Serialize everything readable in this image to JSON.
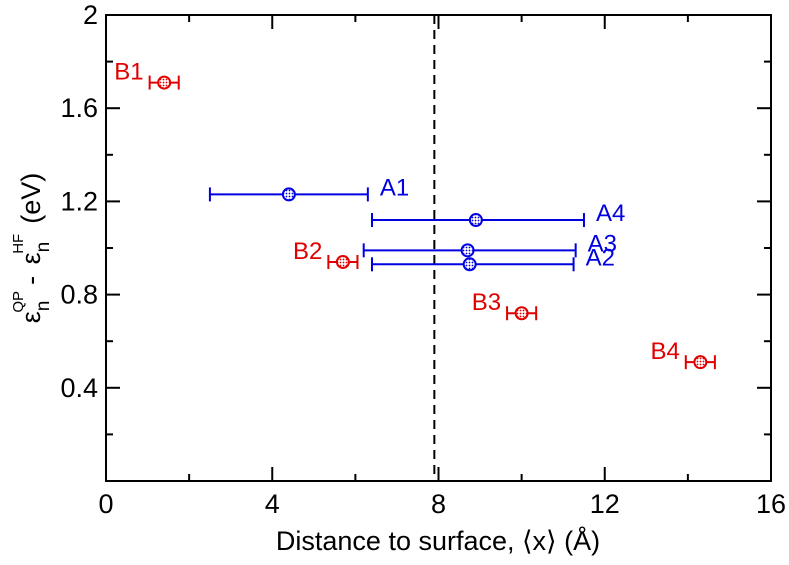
{
  "chart_data": {
    "type": "scatter",
    "xlabel": "Distance to surface, ⟨x⟩ (Å)",
    "ylabel": {
      "eps1": "ε",
      "sub1": "n",
      "sup1": "QP",
      "minus": "-",
      "eps2": "ε",
      "sub2": "n",
      "sup2": "HF",
      "unit": "(eV)"
    },
    "xlim": [
      0,
      16
    ],
    "ylim": [
      0,
      2
    ],
    "xticks": [
      0,
      4,
      8,
      12,
      16
    ],
    "xtick_labels": [
      "0",
      "4",
      "8",
      "12",
      "16"
    ],
    "yticks": [
      0.4,
      0.8,
      1.2,
      1.6,
      2.0
    ],
    "ytick_labels": [
      "0.4",
      "0.8",
      "1.2",
      "1.6",
      "2"
    ],
    "x_minor_step": 2,
    "y_minor_step": 0.2,
    "grid": false,
    "vline": {
      "x": 7.9,
      "style": "dashed",
      "color": "#000000"
    },
    "series": [
      {
        "color": "#0000e0",
        "points": [
          {
            "label": "A1",
            "x": 4.4,
            "y": 1.23,
            "xerr": [
              2.5,
              6.3
            ],
            "label_side": "right"
          },
          {
            "label": "A4",
            "x": 8.9,
            "y": 1.12,
            "xerr": [
              6.4,
              11.5
            ],
            "label_side": "right"
          },
          {
            "label": "A3",
            "x": 8.7,
            "y": 0.99,
            "xerr": [
              6.2,
              11.3
            ],
            "label_side": "right"
          },
          {
            "label": "A2",
            "x": 8.75,
            "y": 0.93,
            "xerr": [
              6.4,
              11.25
            ],
            "label_side": "right"
          }
        ]
      },
      {
        "color": "#e00000",
        "points": [
          {
            "label": "B1",
            "x": 1.4,
            "y": 1.71,
            "xerr": [
              1.05,
              1.75
            ],
            "label_side": "left"
          },
          {
            "label": "B2",
            "x": 5.7,
            "y": 0.94,
            "xerr": [
              5.35,
              6.05
            ],
            "label_side": "left"
          },
          {
            "label": "B3",
            "x": 10.0,
            "y": 0.72,
            "xerr": [
              9.65,
              10.35
            ],
            "label_side": "left"
          },
          {
            "label": "B4",
            "x": 14.3,
            "y": 0.51,
            "xerr": [
              13.95,
              14.65
            ],
            "label_side": "left"
          }
        ]
      }
    ]
  }
}
